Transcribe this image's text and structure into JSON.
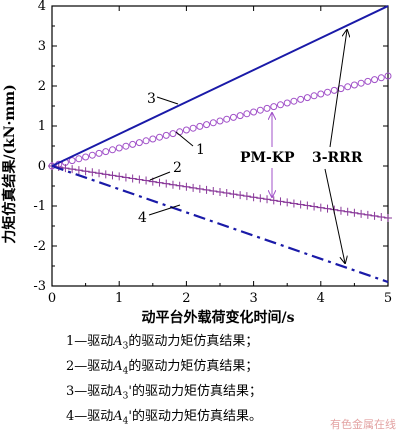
{
  "chart_data": {
    "type": "line",
    "xlabel": "动平台外载荷变化时间/s",
    "ylabel": "力矩仿真结果/(kN·mm)",
    "xlim": [
      0,
      5
    ],
    "ylim": [
      -3,
      4
    ],
    "xticks": [
      "0",
      "1",
      "2",
      "3",
      "4",
      "5"
    ],
    "yticks": [
      "-3",
      "-2",
      "-1",
      "0",
      "1",
      "2",
      "3",
      "4"
    ],
    "grid": false,
    "x": [
      0,
      1,
      2,
      3,
      4,
      5
    ],
    "series": [
      {
        "name": "1",
        "marker": "circle",
        "line": "none",
        "color": "#a050c8",
        "values": [
          0,
          0.45,
          0.9,
          1.35,
          1.8,
          2.25
        ]
      },
      {
        "name": "2",
        "marker": "plus",
        "line": "solid-thin",
        "color": "#8a3a9a",
        "values": [
          0,
          -0.26,
          -0.52,
          -0.78,
          -1.04,
          -1.3
        ]
      },
      {
        "name": "3",
        "marker": "none",
        "line": "solid",
        "color": "#1a1aa8",
        "values": [
          0,
          0.8,
          1.6,
          2.4,
          3.2,
          4.0
        ]
      },
      {
        "name": "4",
        "marker": "none",
        "line": "dashdot",
        "color": "#1a1aa8",
        "values": [
          0,
          -0.58,
          -1.16,
          -1.74,
          -2.32,
          -2.9
        ]
      }
    ],
    "annotations": [
      {
        "text": "PM-KP"
      },
      {
        "text": "3-RRR"
      }
    ]
  },
  "legend": [
    {
      "prefix": "1—驱动",
      "var": "A",
      "sub": "3",
      "prime": "",
      "suffix": "的驱动力矩仿真结果；"
    },
    {
      "prefix": "2—驱动",
      "var": "A",
      "sub": "4",
      "prime": "",
      "suffix": "的驱动力矩仿真结果；"
    },
    {
      "prefix": "3—驱动",
      "var": "A",
      "sub": "3",
      "prime": "'",
      "suffix": "的驱动力矩仿真结果；"
    },
    {
      "prefix": "4—驱动",
      "var": "A",
      "sub": "4",
      "prime": "'",
      "suffix": "的驱动力矩仿真结果。"
    }
  ],
  "watermark": "有色金属在线"
}
